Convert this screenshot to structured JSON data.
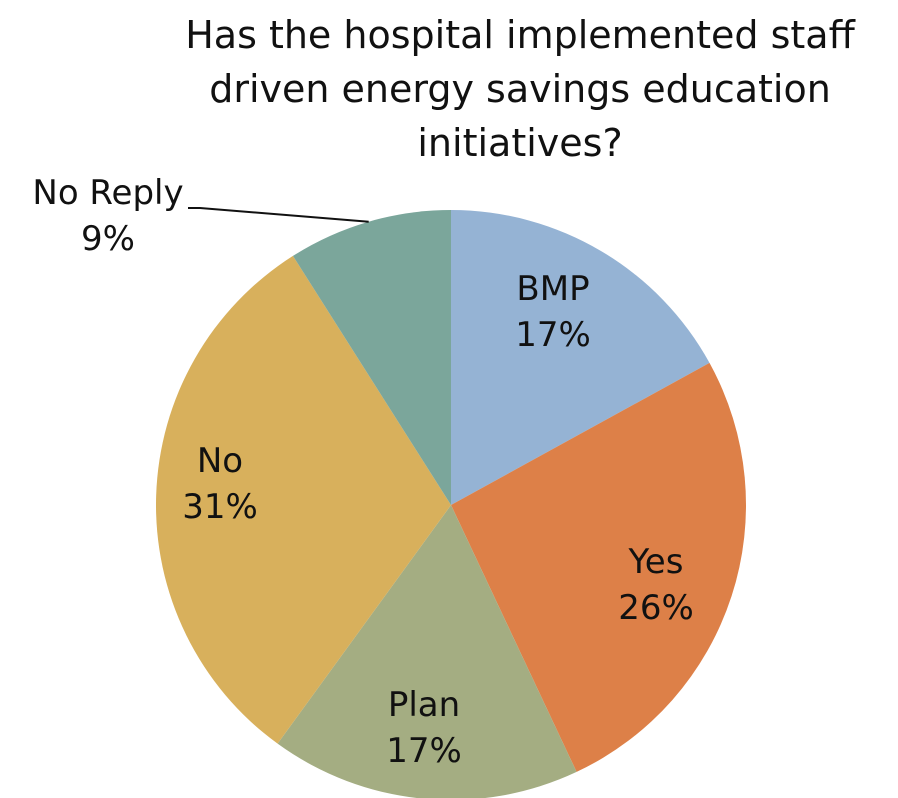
{
  "chart_data": {
    "type": "pie",
    "title_lines": [
      "Has the hospital implemented staff",
      "driven energy savings education",
      "initiatives?"
    ],
    "categories": [
      "BMP",
      "Yes",
      "Plan",
      "No",
      "No Reply"
    ],
    "values": [
      17,
      26,
      17,
      31,
      9
    ],
    "labels": [
      "17%",
      "26%",
      "17%",
      "31%",
      "9%"
    ],
    "colors": [
      "#95b3d4",
      "#dd8048",
      "#a4ad82",
      "#d8b05c",
      "#7ba69b"
    ],
    "start_angle": "12 o'clock",
    "direction": "clockwise",
    "legend": "none"
  }
}
